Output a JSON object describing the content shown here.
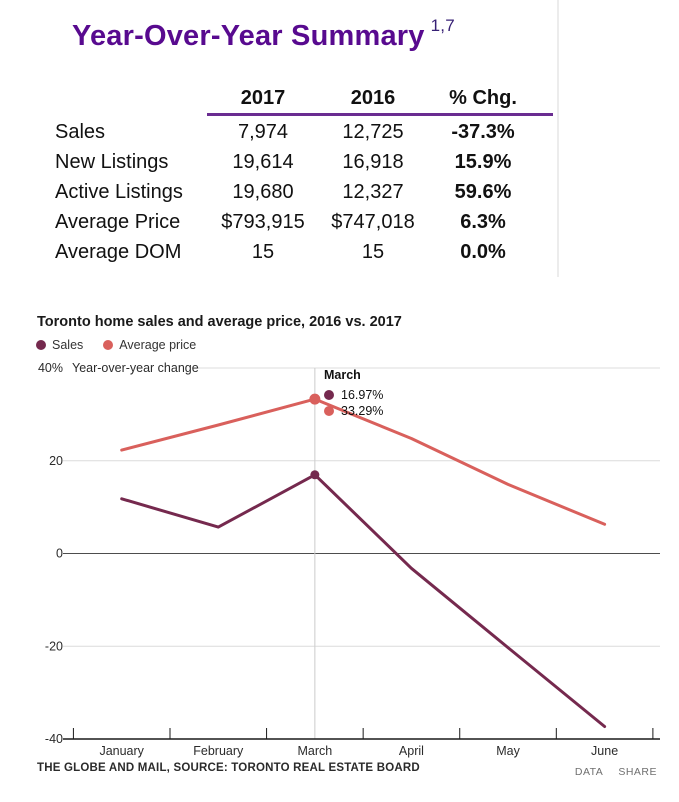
{
  "summary": {
    "title": "Year-Over-Year Summary",
    "title_superscript": "1,7",
    "accent_color": "#6a2c91",
    "columns": [
      "2017",
      "2016",
      "% Chg."
    ],
    "rows": [
      {
        "label": "Sales",
        "y2017": "7,974",
        "y2016": "12,725",
        "chg": "-37.3%"
      },
      {
        "label": "New Listings",
        "y2017": "19,614",
        "y2016": "16,918",
        "chg": "15.9%"
      },
      {
        "label": "Active Listings",
        "y2017": "19,680",
        "y2016": "12,327",
        "chg": "59.6%"
      },
      {
        "label": "Average Price",
        "y2017": "$793,915",
        "y2016": "$747,018",
        "chg": "6.3%"
      },
      {
        "label": "Average DOM",
        "y2017": "15",
        "y2016": "15",
        "chg": "0.0%"
      }
    ]
  },
  "chart_data": {
    "type": "line",
    "title": "Toronto home sales and average price, 2016 vs. 2017",
    "ylabel": "Year-over-year change",
    "x": [
      "January",
      "February",
      "March",
      "April",
      "May",
      "June"
    ],
    "series": [
      {
        "name": "Sales",
        "color": "#75294e",
        "values": [
          11.8,
          5.7,
          16.97,
          -3.2,
          -20.3,
          -37.3
        ]
      },
      {
        "name": "Average price",
        "color": "#d9605c",
        "values": [
          22.3,
          27.7,
          33.29,
          24.8,
          14.9,
          6.3
        ]
      }
    ],
    "ylim": [
      -40,
      40
    ],
    "yticks": [
      40,
      20,
      0,
      -20,
      -40
    ],
    "ytick_labels": [
      "40%",
      "20",
      "0",
      "-20",
      "-40"
    ],
    "grid": true,
    "legend_position": "top-left",
    "annotation": {
      "x": "March",
      "label": "March",
      "values": [
        {
          "series": "Sales",
          "text": "16.97%"
        },
        {
          "series": "Average price",
          "text": "33.29%"
        }
      ]
    },
    "colors": {
      "gridline": "#dcdcdc",
      "zero_line": "#4d4d4d",
      "axis": "#1a1a1a",
      "reference_line": "#cccccc",
      "tick_text": "#2b2b2b"
    }
  },
  "footer": {
    "source": "THE GLOBE AND MAIL, SOURCE: TORONTO REAL ESTATE BOARD",
    "links": [
      "DATA",
      "SHARE"
    ]
  }
}
